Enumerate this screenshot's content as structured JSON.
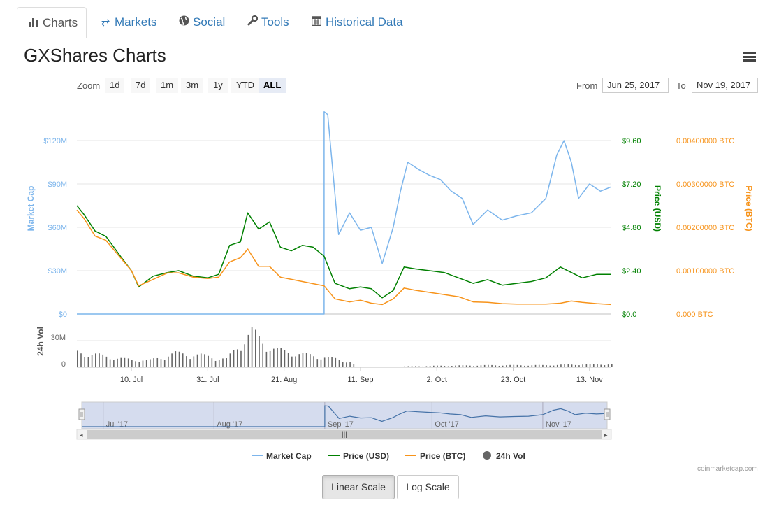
{
  "tabs": [
    {
      "label": "Charts",
      "icon": "bar-chart-icon"
    },
    {
      "label": "Markets",
      "icon": "exchange-arrows-icon"
    },
    {
      "label": "Social",
      "icon": "globe-icon"
    },
    {
      "label": "Tools",
      "icon": "wrench-icon"
    },
    {
      "label": "Historical Data",
      "icon": "calendar-icon"
    }
  ],
  "title": "GXShares Charts",
  "zoom": {
    "label": "Zoom",
    "buttons": [
      "1d",
      "7d",
      "1m",
      "3m",
      "1y",
      "YTD",
      "ALL"
    ],
    "selected": "ALL"
  },
  "range": {
    "from_label": "From",
    "from": "Jun 25, 2017",
    "to_label": "To",
    "to": "Nov 19, 2017"
  },
  "scale_buttons": {
    "linear": "Linear Scale",
    "log": "Log Scale",
    "active": "linear"
  },
  "credit": "coinmarketcap.com",
  "colors": {
    "market_cap": "#7cb5ec",
    "price_usd": "#008000",
    "price_btc": "#f7931a",
    "volume": "#666666"
  },
  "chart_data": [
    {
      "type": "line",
      "title": "GXShares Charts",
      "x_ticks": [
        "10. Jul",
        "31. Jul",
        "21. Aug",
        "11. Sep",
        "2. Oct",
        "23. Oct",
        "13. Nov"
      ],
      "x_range": [
        "Jun 25, 2017",
        "Nov 19, 2017"
      ],
      "grid": true,
      "legend_position": "bottom",
      "y_axes": [
        {
          "label": "Market Cap",
          "ticks": [
            "$0",
            "$30M",
            "$60M",
            "$90M",
            "$120M"
          ],
          "range": [
            0,
            120000000
          ],
          "unit": "USD"
        },
        {
          "label": "Price (USD)",
          "ticks": [
            "$0.0",
            "$2.40",
            "$4.80",
            "$7.20",
            "$9.60"
          ],
          "range": [
            0,
            9.6
          ]
        },
        {
          "label": "Price (BTC)",
          "ticks": [
            "0.000 BTC",
            "0.00100000 BTC",
            "0.00200000 BTC",
            "0.00300000 BTC",
            "0.00400000 BTC"
          ],
          "range": [
            0,
            0.004
          ]
        }
      ],
      "series": [
        {
          "name": "Market Cap",
          "axis": 0,
          "points": [
            [
              "Jun 25, 2017",
              0
            ],
            [
              "Sep 1, 2017",
              0
            ],
            [
              "Sep 1, 2017",
              140000000
            ],
            [
              "Sep 2, 2017",
              138000000
            ],
            [
              "Sep 3, 2017",
              110000000
            ],
            [
              "Sep 5, 2017",
              55000000
            ],
            [
              "Sep 8, 2017",
              70000000
            ],
            [
              "Sep 11, 2017",
              58000000
            ],
            [
              "Sep 14, 2017",
              60000000
            ],
            [
              "Sep 17, 2017",
              35000000
            ],
            [
              "Sep 20, 2017",
              60000000
            ],
            [
              "Sep 22, 2017",
              85000000
            ],
            [
              "Sep 24, 2017",
              105000000
            ],
            [
              "Sep 27, 2017",
              100000000
            ],
            [
              "Sep 30, 2017",
              96000000
            ],
            [
              "Oct 3, 2017",
              93000000
            ],
            [
              "Oct 6, 2017",
              85000000
            ],
            [
              "Oct 9, 2017",
              80000000
            ],
            [
              "Oct 12, 2017",
              62000000
            ],
            [
              "Oct 16, 2017",
              72000000
            ],
            [
              "Oct 20, 2017",
              65000000
            ],
            [
              "Oct 24, 2017",
              68000000
            ],
            [
              "Oct 28, 2017",
              70000000
            ],
            [
              "Nov 1, 2017",
              80000000
            ],
            [
              "Nov 4, 2017",
              110000000
            ],
            [
              "Nov 6, 2017",
              120000000
            ],
            [
              "Nov 8, 2017",
              105000000
            ],
            [
              "Nov 10, 2017",
              80000000
            ],
            [
              "Nov 13, 2017",
              90000000
            ],
            [
              "Nov 16, 2017",
              85000000
            ],
            [
              "Nov 19, 2017",
              88000000
            ]
          ]
        },
        {
          "name": "Price (USD)",
          "axis": 1,
          "points": [
            [
              "Jun 25, 2017",
              6.0
            ],
            [
              "Jun 27, 2017",
              5.5
            ],
            [
              "Jun 30, 2017",
              4.6
            ],
            [
              "Jul 3, 2017",
              4.3
            ],
            [
              "Jul 7, 2017",
              3.2
            ],
            [
              "Jul 10, 2017",
              2.4
            ],
            [
              "Jul 12, 2017",
              1.5
            ],
            [
              "Jul 16, 2017",
              2.1
            ],
            [
              "Jul 20, 2017",
              2.3
            ],
            [
              "Jul 23, 2017",
              2.4
            ],
            [
              "Jul 27, 2017",
              2.1
            ],
            [
              "Jul 31, 2017",
              2.0
            ],
            [
              "Aug 3, 2017",
              2.2
            ],
            [
              "Aug 6, 2017",
              3.8
            ],
            [
              "Aug 9, 2017",
              4.0
            ],
            [
              "Aug 11, 2017",
              5.6
            ],
            [
              "Aug 14, 2017",
              4.7
            ],
            [
              "Aug 17, 2017",
              5.1
            ],
            [
              "Aug 20, 2017",
              3.7
            ],
            [
              "Aug 23, 2017",
              3.5
            ],
            [
              "Aug 26, 2017",
              3.8
            ],
            [
              "Aug 29, 2017",
              3.7
            ],
            [
              "Sep 1, 2017",
              3.2
            ],
            [
              "Sep 4, 2017",
              1.7
            ],
            [
              "Sep 8, 2017",
              1.4
            ],
            [
              "Sep 11, 2017",
              1.5
            ],
            [
              "Sep 14, 2017",
              1.4
            ],
            [
              "Sep 17, 2017",
              0.9
            ],
            [
              "Sep 20, 2017",
              1.3
            ],
            [
              "Sep 23, 2017",
              2.6
            ],
            [
              "Sep 26, 2017",
              2.5
            ],
            [
              "Sep 30, 2017",
              2.4
            ],
            [
              "Oct 4, 2017",
              2.3
            ],
            [
              "Oct 8, 2017",
              2.0
            ],
            [
              "Oct 12, 2017",
              1.7
            ],
            [
              "Oct 16, 2017",
              1.9
            ],
            [
              "Oct 20, 2017",
              1.6
            ],
            [
              "Oct 24, 2017",
              1.7
            ],
            [
              "Oct 28, 2017",
              1.8
            ],
            [
              "Nov 1, 2017",
              2.0
            ],
            [
              "Nov 5, 2017",
              2.6
            ],
            [
              "Nov 8, 2017",
              2.3
            ],
            [
              "Nov 11, 2017",
              2.0
            ],
            [
              "Nov 15, 2017",
              2.2
            ],
            [
              "Nov 19, 2017",
              2.2
            ]
          ]
        },
        {
          "name": "Price (BTC)",
          "axis": 2,
          "points": [
            [
              "Jun 25, 2017",
              0.0024
            ],
            [
              "Jun 27, 2017",
              0.0022
            ],
            [
              "Jun 30, 2017",
              0.0018
            ],
            [
              "Jul 3, 2017",
              0.0017
            ],
            [
              "Jul 7, 2017",
              0.0013
            ],
            [
              "Jul 10, 2017",
              0.001
            ],
            [
              "Jul 12, 2017",
              0.00065
            ],
            [
              "Jul 16, 2017",
              0.0008
            ],
            [
              "Jul 20, 2017",
              0.00095
            ],
            [
              "Jul 23, 2017",
              0.00095
            ],
            [
              "Jul 27, 2017",
              0.00085
            ],
            [
              "Jul 31, 2017",
              0.00082
            ],
            [
              "Aug 3, 2017",
              0.00085
            ],
            [
              "Aug 6, 2017",
              0.0012
            ],
            [
              "Aug 9, 2017",
              0.0013
            ],
            [
              "Aug 11, 2017",
              0.0015
            ],
            [
              "Aug 14, 2017",
              0.0011
            ],
            [
              "Aug 17, 2017",
              0.0011
            ],
            [
              "Aug 20, 2017",
              0.00085
            ],
            [
              "Aug 23, 2017",
              0.0008
            ],
            [
              "Aug 26, 2017",
              0.00075
            ],
            [
              "Aug 29, 2017",
              0.0007
            ],
            [
              "Sep 1, 2017",
              0.00065
            ],
            [
              "Sep 4, 2017",
              0.00035
            ],
            [
              "Sep 8, 2017",
              0.00028
            ],
            [
              "Sep 11, 2017",
              0.00032
            ],
            [
              "Sep 14, 2017",
              0.00025
            ],
            [
              "Sep 17, 2017",
              0.00022
            ],
            [
              "Sep 20, 2017",
              0.00035
            ],
            [
              "Sep 23, 2017",
              0.0006
            ],
            [
              "Sep 26, 2017",
              0.00055
            ],
            [
              "Sep 30, 2017",
              0.0005
            ],
            [
              "Oct 4, 2017",
              0.00045
            ],
            [
              "Oct 8, 2017",
              0.0004
            ],
            [
              "Oct 12, 2017",
              0.00028
            ],
            [
              "Oct 16, 2017",
              0.00027
            ],
            [
              "Oct 20, 2017",
              0.00024
            ],
            [
              "Oct 24, 2017",
              0.00023
            ],
            [
              "Oct 28, 2017",
              0.00023
            ],
            [
              "Nov 1, 2017",
              0.00023
            ],
            [
              "Nov 5, 2017",
              0.00025
            ],
            [
              "Nov 8, 2017",
              0.0003
            ],
            [
              "Nov 11, 2017",
              0.00027
            ],
            [
              "Nov 15, 2017",
              0.00024
            ],
            [
              "Nov 19, 2017",
              0.00022
            ]
          ]
        }
      ]
    },
    {
      "type": "bar",
      "x_range": [
        "Jun 25, 2017",
        "Nov 19, 2017"
      ],
      "y_axis": {
        "label": "24h Vol",
        "ticks": [
          "0",
          "30M"
        ],
        "range": [
          0,
          40000000
        ]
      },
      "series": [
        {
          "name": "24h Vol",
          "points": [
            [
              "Jun 25, 2017",
              15000000
            ],
            [
              "Jul 1, 2017",
              12000000
            ],
            [
              "Jul 8, 2017",
              8000000
            ],
            [
              "Jul 15, 2017",
              7000000
            ],
            [
              "Jul 22, 2017",
              14000000
            ],
            [
              "Jul 29, 2017",
              12000000
            ],
            [
              "Aug 5, 2017",
              8000000
            ],
            [
              "Aug 12, 2017",
              36000000
            ],
            [
              "Aug 16, 2017",
              22000000
            ],
            [
              "Aug 19, 2017",
              17000000
            ],
            [
              "Aug 26, 2017",
              13000000
            ],
            [
              "Sep 1, 2017",
              10000000
            ],
            [
              "Sep 8, 2017",
              6000000
            ],
            [
              "Sep 10, 2017",
              0
            ],
            [
              "Oct 3, 2017",
              1500000
            ],
            [
              "Oct 17, 2017",
              2000000
            ],
            [
              "Oct 31, 2017",
              2000000
            ],
            [
              "Nov 12, 2017",
              3000000
            ],
            [
              "Nov 19, 2017",
              3000000
            ]
          ]
        }
      ]
    },
    {
      "type": "area",
      "name": "navigator",
      "x_ticks": [
        "Jul '17",
        "Aug '17",
        "Sep '17",
        "Oct '17",
        "Nov '17"
      ]
    }
  ]
}
